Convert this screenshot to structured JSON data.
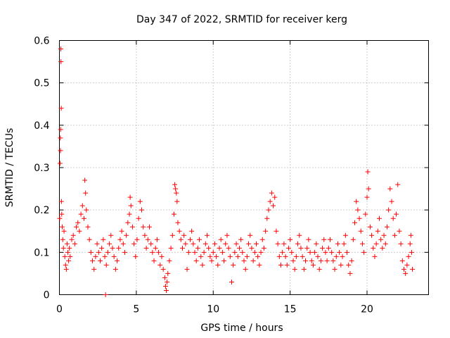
{
  "chart_data": {
    "type": "scatter",
    "title": "Day 347 of 2022, SRMTID for receiver kerg",
    "xlabel": "GPS time / hours",
    "ylabel": "SRMTID / TECUs",
    "xlim": [
      0,
      24
    ],
    "ylim": [
      0,
      0.6
    ],
    "x_ticks": [
      0,
      5,
      10,
      15,
      20
    ],
    "x_tick_labels": [
      "0",
      "5",
      "10",
      "15",
      "20"
    ],
    "y_ticks": [
      0,
      0.1,
      0.2,
      0.3,
      0.4,
      0.5,
      0.6
    ],
    "y_tick_labels": [
      "0",
      "0.1",
      "0.2",
      "0.3",
      "0.4",
      "0.5",
      "0.6"
    ],
    "grid": true,
    "marker": "+",
    "marker_color": "#ff0000",
    "series": [
      {
        "name": "SRMTID",
        "points": [
          [
            0.02,
            0.18
          ],
          [
            0.04,
            0.31
          ],
          [
            0.06,
            0.37
          ],
          [
            0.07,
            0.34
          ],
          [
            0.08,
            0.39
          ],
          [
            0.09,
            0.58
          ],
          [
            0.1,
            0.55
          ],
          [
            0.12,
            0.44
          ],
          [
            0.13,
            0.22
          ],
          [
            0.15,
            0.19
          ],
          [
            0.18,
            0.16
          ],
          [
            0.22,
            0.13
          ],
          [
            0.26,
            0.11
          ],
          [
            0.3,
            0.15
          ],
          [
            0.35,
            0.09
          ],
          [
            0.4,
            0.07
          ],
          [
            0.45,
            0.06
          ],
          [
            0.5,
            0.12
          ],
          [
            0.55,
            0.1
          ],
          [
            0.6,
            0.08
          ],
          [
            0.65,
            0.11
          ],
          [
            0.7,
            0.09
          ],
          [
            0.8,
            0.13
          ],
          [
            0.9,
            0.14
          ],
          [
            1.0,
            0.12
          ],
          [
            1.1,
            0.16
          ],
          [
            1.2,
            0.17
          ],
          [
            1.3,
            0.15
          ],
          [
            1.4,
            0.19
          ],
          [
            1.5,
            0.21
          ],
          [
            1.6,
            0.18
          ],
          [
            1.65,
            0.27
          ],
          [
            1.7,
            0.24
          ],
          [
            1.75,
            0.2
          ],
          [
            1.85,
            0.16
          ],
          [
            1.95,
            0.13
          ],
          [
            2.05,
            0.1
          ],
          [
            2.15,
            0.08
          ],
          [
            2.25,
            0.06
          ],
          [
            2.35,
            0.09
          ],
          [
            2.45,
            0.12
          ],
          [
            2.55,
            0.1
          ],
          [
            2.65,
            0.08
          ],
          [
            2.75,
            0.11
          ],
          [
            2.85,
            0.13
          ],
          [
            2.95,
            0.09
          ],
          [
            3.0,
            0.0
          ],
          [
            3.05,
            0.07
          ],
          [
            3.15,
            0.1
          ],
          [
            3.25,
            0.12
          ],
          [
            3.35,
            0.14
          ],
          [
            3.45,
            0.11
          ],
          [
            3.55,
            0.09
          ],
          [
            3.65,
            0.06
          ],
          [
            3.75,
            0.08
          ],
          [
            3.85,
            0.11
          ],
          [
            3.95,
            0.13
          ],
          [
            4.05,
            0.15
          ],
          [
            4.15,
            0.12
          ],
          [
            4.25,
            0.1
          ],
          [
            4.35,
            0.14
          ],
          [
            4.45,
            0.17
          ],
          [
            4.55,
            0.19
          ],
          [
            4.6,
            0.23
          ],
          [
            4.65,
            0.21
          ],
          [
            4.75,
            0.16
          ],
          [
            4.85,
            0.12
          ],
          [
            4.95,
            0.09
          ],
          [
            5.05,
            0.13
          ],
          [
            5.15,
            0.18
          ],
          [
            5.25,
            0.22
          ],
          [
            5.35,
            0.2
          ],
          [
            5.45,
            0.16
          ],
          [
            5.55,
            0.14
          ],
          [
            5.65,
            0.11
          ],
          [
            5.75,
            0.13
          ],
          [
            5.85,
            0.16
          ],
          [
            5.95,
            0.12
          ],
          [
            6.05,
            0.1
          ],
          [
            6.15,
            0.08
          ],
          [
            6.25,
            0.11
          ],
          [
            6.35,
            0.13
          ],
          [
            6.45,
            0.1
          ],
          [
            6.55,
            0.07
          ],
          [
            6.65,
            0.09
          ],
          [
            6.75,
            0.06
          ],
          [
            6.85,
            0.04
          ],
          [
            6.9,
            0.02
          ],
          [
            6.95,
            0.01
          ],
          [
            7.0,
            0.03
          ],
          [
            7.05,
            0.05
          ],
          [
            7.15,
            0.08
          ],
          [
            7.25,
            0.11
          ],
          [
            7.35,
            0.14
          ],
          [
            7.45,
            0.19
          ],
          [
            7.5,
            0.26
          ],
          [
            7.55,
            0.25
          ],
          [
            7.6,
            0.24
          ],
          [
            7.65,
            0.22
          ],
          [
            7.7,
            0.17
          ],
          [
            7.8,
            0.15
          ],
          [
            7.9,
            0.13
          ],
          [
            8.0,
            0.11
          ],
          [
            8.1,
            0.14
          ],
          [
            8.2,
            0.12
          ],
          [
            8.3,
            0.06
          ],
          [
            8.4,
            0.1
          ],
          [
            8.5,
            0.13
          ],
          [
            8.6,
            0.15
          ],
          [
            8.7,
            0.12
          ],
          [
            8.8,
            0.1
          ],
          [
            8.9,
            0.08
          ],
          [
            9.0,
            0.11
          ],
          [
            9.1,
            0.13
          ],
          [
            9.2,
            0.09
          ],
          [
            9.3,
            0.07
          ],
          [
            9.4,
            0.1
          ],
          [
            9.5,
            0.12
          ],
          [
            9.6,
            0.14
          ],
          [
            9.7,
            0.11
          ],
          [
            9.8,
            0.09
          ],
          [
            9.9,
            0.08
          ],
          [
            10.0,
            0.1
          ],
          [
            10.1,
            0.12
          ],
          [
            10.2,
            0.09
          ],
          [
            10.3,
            0.07
          ],
          [
            10.4,
            0.11
          ],
          [
            10.5,
            0.13
          ],
          [
            10.6,
            0.1
          ],
          [
            10.7,
            0.08
          ],
          [
            10.8,
            0.12
          ],
          [
            10.9,
            0.14
          ],
          [
            11.0,
            0.11
          ],
          [
            11.1,
            0.09
          ],
          [
            11.2,
            0.03
          ],
          [
            11.3,
            0.07
          ],
          [
            11.4,
            0.1
          ],
          [
            11.5,
            0.12
          ],
          [
            11.6,
            0.09
          ],
          [
            11.7,
            0.11
          ],
          [
            11.8,
            0.13
          ],
          [
            11.9,
            0.1
          ],
          [
            12.0,
            0.08
          ],
          [
            12.1,
            0.06
          ],
          [
            12.2,
            0.09
          ],
          [
            12.3,
            0.12
          ],
          [
            12.4,
            0.14
          ],
          [
            12.5,
            0.11
          ],
          [
            12.6,
            0.08
          ],
          [
            12.7,
            0.1
          ],
          [
            12.8,
            0.12
          ],
          [
            12.9,
            0.09
          ],
          [
            13.0,
            0.07
          ],
          [
            13.1,
            0.1
          ],
          [
            13.2,
            0.13
          ],
          [
            13.3,
            0.11
          ],
          [
            13.4,
            0.15
          ],
          [
            13.5,
            0.18
          ],
          [
            13.6,
            0.2
          ],
          [
            13.7,
            0.22
          ],
          [
            13.8,
            0.24
          ],
          [
            13.9,
            0.21
          ],
          [
            14.0,
            0.23
          ],
          [
            14.1,
            0.15
          ],
          [
            14.2,
            0.12
          ],
          [
            14.3,
            0.09
          ],
          [
            14.4,
            0.07
          ],
          [
            14.5,
            0.1
          ],
          [
            14.6,
            0.12
          ],
          [
            14.7,
            0.09
          ],
          [
            14.8,
            0.07
          ],
          [
            14.9,
            0.11
          ],
          [
            15.0,
            0.13
          ],
          [
            15.1,
            0.1
          ],
          [
            15.2,
            0.08
          ],
          [
            15.3,
            0.06
          ],
          [
            15.4,
            0.09
          ],
          [
            15.5,
            0.12
          ],
          [
            15.6,
            0.14
          ],
          [
            15.7,
            0.11
          ],
          [
            15.8,
            0.09
          ],
          [
            15.9,
            0.06
          ],
          [
            16.0,
            0.08
          ],
          [
            16.1,
            0.11
          ],
          [
            16.2,
            0.13
          ],
          [
            16.3,
            0.1
          ],
          [
            16.4,
            0.08
          ],
          [
            16.5,
            0.07
          ],
          [
            16.6,
            0.1
          ],
          [
            16.7,
            0.12
          ],
          [
            16.8,
            0.09
          ],
          [
            16.9,
            0.06
          ],
          [
            17.0,
            0.08
          ],
          [
            17.1,
            0.11
          ],
          [
            17.2,
            0.13
          ],
          [
            17.3,
            0.1
          ],
          [
            17.4,
            0.08
          ],
          [
            17.5,
            0.11
          ],
          [
            17.6,
            0.13
          ],
          [
            17.7,
            0.1
          ],
          [
            17.8,
            0.08
          ],
          [
            17.9,
            0.06
          ],
          [
            18.0,
            0.09
          ],
          [
            18.1,
            0.12
          ],
          [
            18.2,
            0.1
          ],
          [
            18.3,
            0.07
          ],
          [
            18.4,
            0.09
          ],
          [
            18.5,
            0.12
          ],
          [
            18.6,
            0.14
          ],
          [
            18.7,
            0.1
          ],
          [
            18.8,
            0.07
          ],
          [
            18.9,
            0.05
          ],
          [
            19.0,
            0.08
          ],
          [
            19.1,
            0.13
          ],
          [
            19.2,
            0.17
          ],
          [
            19.3,
            0.22
          ],
          [
            19.4,
            0.2
          ],
          [
            19.5,
            0.18
          ],
          [
            19.6,
            0.15
          ],
          [
            19.7,
            0.12
          ],
          [
            19.8,
            0.1
          ],
          [
            19.9,
            0.19
          ],
          [
            20.0,
            0.23
          ],
          [
            20.05,
            0.29
          ],
          [
            20.1,
            0.25
          ],
          [
            20.2,
            0.16
          ],
          [
            20.3,
            0.14
          ],
          [
            20.4,
            0.11
          ],
          [
            20.5,
            0.09
          ],
          [
            20.6,
            0.12
          ],
          [
            20.7,
            0.15
          ],
          [
            20.8,
            0.18
          ],
          [
            20.9,
            0.13
          ],
          [
            21.0,
            0.11
          ],
          [
            21.1,
            0.14
          ],
          [
            21.2,
            0.12
          ],
          [
            21.3,
            0.16
          ],
          [
            21.4,
            0.2
          ],
          [
            21.5,
            0.25
          ],
          [
            21.6,
            0.22
          ],
          [
            21.7,
            0.18
          ],
          [
            21.8,
            0.14
          ],
          [
            21.9,
            0.19
          ],
          [
            22.0,
            0.26
          ],
          [
            22.1,
            0.15
          ],
          [
            22.2,
            0.12
          ],
          [
            22.3,
            0.08
          ],
          [
            22.4,
            0.06
          ],
          [
            22.5,
            0.05
          ],
          [
            22.6,
            0.07
          ],
          [
            22.7,
            0.09
          ],
          [
            22.8,
            0.12
          ],
          [
            22.85,
            0.14
          ],
          [
            22.9,
            0.1
          ],
          [
            22.95,
            0.06
          ]
        ]
      }
    ]
  }
}
